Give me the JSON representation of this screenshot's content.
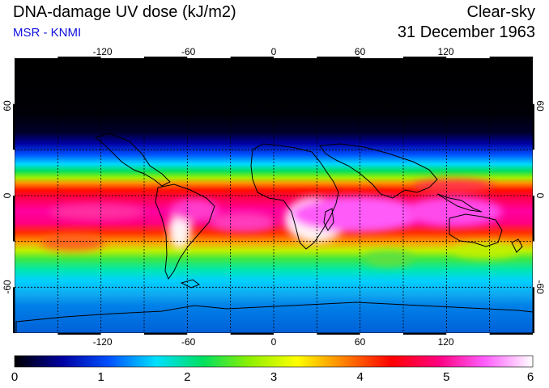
{
  "header": {
    "title": "DNA-damage UV dose (kJ/m2)",
    "subtitle": "MSR - KNMI",
    "condition": "Clear-sky",
    "date": "31 December 1963"
  },
  "map": {
    "lon_ticks": [
      "-120",
      "-60",
      "0",
      "60",
      "120"
    ],
    "lat_ticks": [
      "60",
      "0",
      "-60"
    ],
    "lon_range": [
      -180,
      180
    ],
    "lat_range": [
      -90,
      90
    ],
    "grid_spacing_deg": 30
  },
  "colorbar": {
    "labels": [
      "0",
      "1",
      "2",
      "3",
      "4",
      "5",
      "6"
    ],
    "range": [
      0,
      6
    ],
    "colors": [
      "#000000",
      "#0000a0",
      "#0050ff",
      "#00e0ff",
      "#00e060",
      "#90f000",
      "#ffff00",
      "#ff8000",
      "#ff0000",
      "#ff0080",
      "#ff60ff",
      "#ffffff"
    ]
  }
}
